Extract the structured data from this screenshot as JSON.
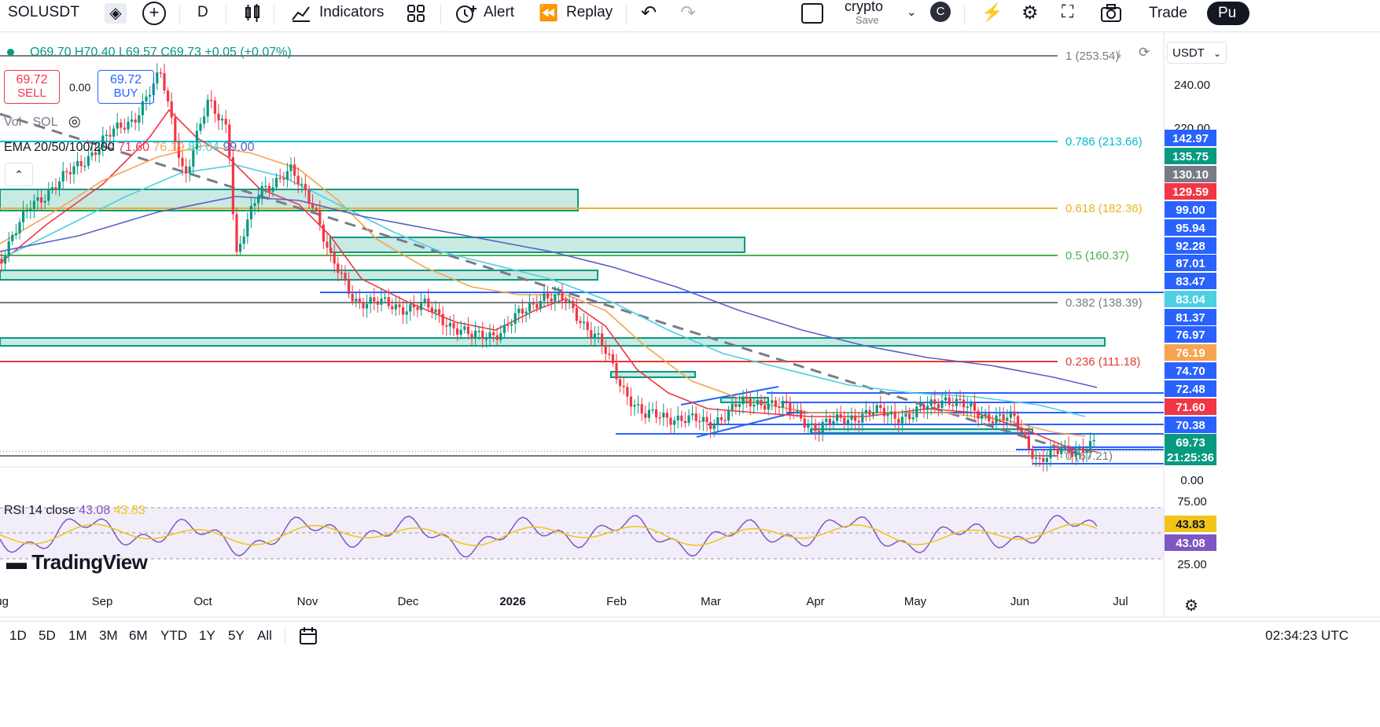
{
  "toolbar": {
    "symbol": "SOLUSDT",
    "interval": "D",
    "indicators_label": "Indicators",
    "alert_label": "Alert",
    "replay_label": "Replay",
    "layout_name": "crypto",
    "save_label": "Save",
    "avatar_letter": "C",
    "trade_label": "Trade",
    "publish_partial": "Pu"
  },
  "legend": {
    "ohlc": "O69.70 H70.40 L69.57 C69.73 +0.05 (+0.07%)",
    "sell_price": "69.72",
    "sell_label": "SELL",
    "spread": "0.00",
    "buy_price": "69.72",
    "buy_label": "BUY",
    "vol_label": "Vol · SOL",
    "ema_label": "EMA 20/50/100/200",
    "ema_values": [
      "71.60",
      "76.19",
      "83.04",
      "99.00"
    ],
    "rsi_label": "RSI 14 close",
    "rsi_values": [
      "43.08",
      "43.83"
    ]
  },
  "currency": "USDT",
  "logo_text": "TradingView",
  "timeframes": [
    "1D",
    "5D",
    "1M",
    "3M",
    "6M",
    "YTD",
    "1Y",
    "5Y",
    "All"
  ],
  "clock": "02:34:23 UTC",
  "colors": {
    "up": "#089981",
    "down": "#f23645",
    "ema20": "#f23645",
    "ema50": "#f7a350",
    "ema100": "#4dd0e1",
    "ema200": "#5b5fc7",
    "blue_line": "#2962ff",
    "rsi": "#7e57c2"
  },
  "chart_data": {
    "type": "candlestick",
    "x_ticks": [
      "Aug",
      "Sep",
      "Oct",
      "Nov",
      "Dec",
      "2026",
      "Feb",
      "Mar",
      "Apr",
      "May",
      "Jun",
      "Jul"
    ],
    "price_axis_labels": [
      "240.00",
      "220.00",
      "0.00"
    ],
    "rsi_axis_labels": [
      "75.00",
      "25.00"
    ],
    "fib_levels": [
      {
        "label": "1 (253.54)",
        "color": "#787b86"
      },
      {
        "label": "0.786 (213.66)",
        "color": "#00bcd4"
      },
      {
        "label": "0.618 (182.36)",
        "color": "#e8b420"
      },
      {
        "label": "0.5 (160.37)",
        "color": "#4caf50"
      },
      {
        "label": "0.382 (138.39)",
        "color": "#787b86"
      },
      {
        "label": "0.236 (111.18)",
        "color": "#e53935"
      },
      {
        "label": "0 (67.21)",
        "color": "#787b86"
      }
    ],
    "price_tags": [
      {
        "label": "142.97",
        "color": "#2962ff"
      },
      {
        "label": "135.75",
        "color": "#089981"
      },
      {
        "label": "130.10",
        "color": "#787b86"
      },
      {
        "label": "129.59",
        "color": "#f23645"
      },
      {
        "label": "99.00",
        "color": "#2962ff"
      },
      {
        "label": "95.94",
        "color": "#2962ff"
      },
      {
        "label": "92.28",
        "color": "#2962ff"
      },
      {
        "label": "87.01",
        "color": "#2962ff"
      },
      {
        "label": "83.47",
        "color": "#2962ff"
      },
      {
        "label": "83.04",
        "color": "#4dd0e1"
      },
      {
        "label": "81.37",
        "color": "#2962ff"
      },
      {
        "label": "76.97",
        "color": "#2962ff"
      },
      {
        "label": "76.19",
        "color": "#f7a350"
      },
      {
        "label": "74.70",
        "color": "#2962ff"
      },
      {
        "label": "72.48",
        "color": "#2962ff"
      },
      {
        "label": "71.60",
        "color": "#f23645"
      },
      {
        "label": "70.38",
        "color": "#2962ff"
      },
      {
        "label": "69.73",
        "color": "#089981"
      },
      {
        "label": "21:25:36",
        "color": "#089981"
      }
    ],
    "rsi_tags": [
      {
        "label": "43.83",
        "color": "#f0c419"
      },
      {
        "label": "43.08",
        "color": "#7e57c2"
      }
    ]
  }
}
